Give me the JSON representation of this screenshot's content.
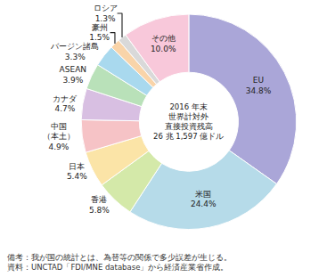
{
  "chart_data": {
    "type": "pie",
    "categories": [
      "EU",
      "米国",
      "香港",
      "日本",
      "中国\n（本土）",
      "カナダ",
      "ASEAN",
      "バージン諸島",
      "豪州",
      "ロシア",
      "その他"
    ],
    "values": [
      34.8,
      24.4,
      5.8,
      5.4,
      4.9,
      4.7,
      3.9,
      3.3,
      1.5,
      1.3,
      10.0
    ],
    "value_labels": [
      "34.8%",
      "24.4%",
      "5.8%",
      "5.4%",
      "4.9%",
      "4.7%",
      "3.9%",
      "3.3%",
      "1.5%",
      "1.3%",
      "10.0%"
    ],
    "colors": [
      "#aaa6d8",
      "#b6dbe9",
      "#d4e9a9",
      "#fbe4a7",
      "#f6c3c6",
      "#d8bfe2",
      "#b9e1b9",
      "#a9d9ee",
      "#f9d4a9",
      "#d9d9d9",
      "#f8c8da"
    ],
    "data_labels": true,
    "center_text": [
      "2016 年末",
      "世界計対外",
      "直接投資残高",
      "26 兆 1,597 億ドル"
    ],
    "notes": [
      "備考：我が国の統計とは、為替等の関係で多少誤差が生じる。",
      "資料：UNCTAD「FDI/MNE database」から経済産業省作成。"
    ]
  }
}
